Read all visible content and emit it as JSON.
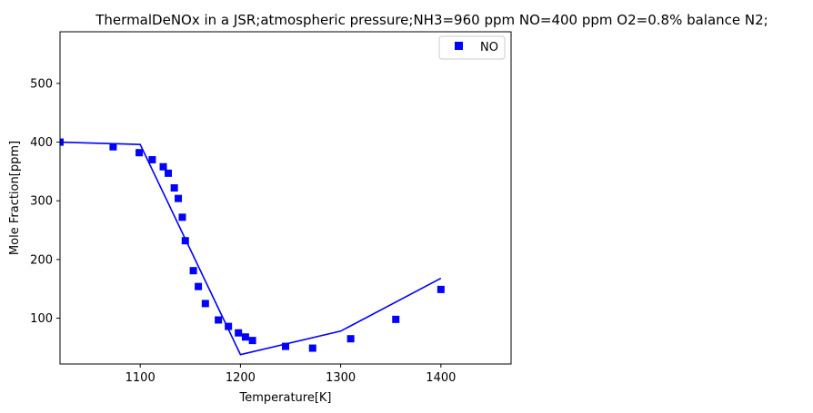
{
  "chart_data": {
    "type": "scatter",
    "title": "ThermalDeNOx in a JSR;atmospheric pressure;NH3=960 ppm NO=400 ppm O2=0.8% balance N2;",
    "xlabel": "Temperature[K]",
    "ylabel": "Mole Fraction[ppm]",
    "xlim": [
      1020,
      1470
    ],
    "ylim": [
      22,
      588
    ],
    "xticks": [
      1100,
      1200,
      1300,
      1400
    ],
    "yticks": [
      100,
      200,
      300,
      400,
      500
    ],
    "grid": false,
    "legend_position": "top-right",
    "series": [
      {
        "name": "NO",
        "kind": "scatter",
        "marker": "square",
        "color": "#0000ff",
        "x": [
          1020,
          1073,
          1099,
          1112,
          1123,
          1128,
          1134,
          1138,
          1142,
          1145,
          1153,
          1158,
          1165,
          1178,
          1188,
          1198,
          1205,
          1212,
          1245,
          1272,
          1310,
          1355,
          1400
        ],
        "y": [
          400,
          392,
          382,
          370,
          358,
          347,
          322,
          304,
          272,
          232,
          181,
          154,
          125,
          97,
          86,
          75,
          68,
          62,
          52,
          49,
          65,
          98,
          149
        ]
      },
      {
        "name": "",
        "kind": "line",
        "color": "#0000ff",
        "x": [
          1020,
          1100,
          1200,
          1300,
          1400
        ],
        "y": [
          400,
          396,
          38,
          78,
          168
        ]
      }
    ]
  }
}
